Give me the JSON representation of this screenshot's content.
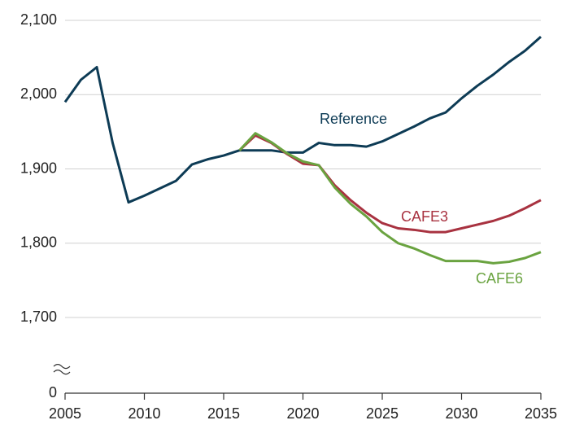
{
  "chart_data": {
    "type": "line",
    "x": [
      2005,
      2006,
      2007,
      2008,
      2009,
      2010,
      2011,
      2012,
      2013,
      2014,
      2015,
      2016,
      2017,
      2018,
      2019,
      2020,
      2021,
      2022,
      2023,
      2024,
      2025,
      2026,
      2027,
      2028,
      2029,
      2030,
      2031,
      2032,
      2033,
      2034,
      2035
    ],
    "series": [
      {
        "name": "Reference",
        "color": "#0d3b55",
        "values": [
          1990,
          2020,
          2037,
          1935,
          1855,
          1864,
          1874,
          1884,
          1906,
          1913,
          1918,
          1925,
          1925,
          1925,
          1922,
          1922,
          1935,
          1932,
          1932,
          1930,
          1937,
          1947,
          1957,
          1968,
          1976,
          1995,
          2012,
          2027,
          2044,
          2059,
          2078
        ]
      },
      {
        "name": "CAFE3",
        "color": "#a83240",
        "values": [
          null,
          null,
          null,
          null,
          null,
          null,
          null,
          null,
          null,
          null,
          null,
          1925,
          1945,
          1935,
          1920,
          1907,
          1905,
          1878,
          1858,
          1841,
          1827,
          1820,
          1818,
          1815,
          1815,
          1820,
          1825,
          1830,
          1837,
          1847,
          1858
        ]
      },
      {
        "name": "CAFE6",
        "color": "#6aa340",
        "values": [
          null,
          null,
          null,
          null,
          null,
          null,
          null,
          null,
          null,
          null,
          null,
          1925,
          1948,
          1936,
          1921,
          1910,
          1905,
          1875,
          1853,
          1836,
          1815,
          1800,
          1793,
          1784,
          1776,
          1776,
          1776,
          1773,
          1775,
          1780,
          1788
        ]
      }
    ],
    "xlim": [
      2005,
      2035
    ],
    "xticks": [
      2005,
      2010,
      2015,
      2020,
      2025,
      2030,
      2035
    ],
    "ylim": [
      0,
      2100
    ],
    "yticks": [
      0,
      {
        "value": 1700,
        "label": "1,700"
      },
      {
        "value": 1800,
        "label": "1,800"
      },
      {
        "value": 1900,
        "label": "1,900"
      },
      {
        "value": 2000,
        "label": "2,000"
      },
      {
        "value": 2100,
        "label": "2,100"
      }
    ],
    "axis_break": true,
    "grid": true
  }
}
